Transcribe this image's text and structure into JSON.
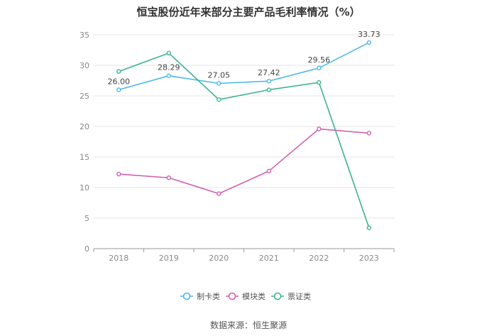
{
  "chart_data": {
    "type": "line",
    "title": "恒宝股份近年来部分主要产品毛利率情况（%）",
    "categories": [
      "2018",
      "2019",
      "2020",
      "2021",
      "2022",
      "2023"
    ],
    "ylim": [
      0,
      35
    ],
    "yticks": [
      0,
      5,
      10,
      15,
      20,
      25,
      30,
      35
    ],
    "grid": true,
    "legend_position": "bottom",
    "series": [
      {
        "name": "制卡类",
        "color": "#4db8e8",
        "values": [
          26.0,
          28.29,
          27.05,
          27.42,
          29.56,
          33.73
        ],
        "labels": [
          "26.00",
          "28.29",
          "27.05",
          "27.42",
          "29.56",
          "33.73"
        ]
      },
      {
        "name": "模块类",
        "color": "#d45fb0",
        "values": [
          12.2,
          11.6,
          9.0,
          12.7,
          19.6,
          18.9
        ]
      },
      {
        "name": "票证类",
        "color": "#3cb391",
        "values": [
          29.0,
          32.0,
          24.4,
          26.0,
          27.2,
          3.4
        ]
      }
    ],
    "source": "数据来源：恒生聚源"
  }
}
